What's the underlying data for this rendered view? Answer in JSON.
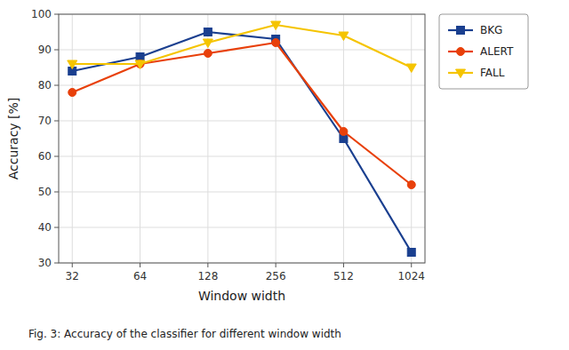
{
  "chart_data": {
    "type": "line",
    "caption": "Fig. 3: Accuracy of the classifier for different window width",
    "x_label": "Window width",
    "y_label": "Accuracy [%]",
    "categories": [
      "32",
      "64",
      "128",
      "256",
      "512",
      "1024"
    ],
    "series": [
      {
        "name": "BKG",
        "color": "#1a3f8f",
        "marker": "square",
        "values": [
          84,
          88,
          95,
          93,
          65,
          33
        ]
      },
      {
        "name": "ALERT",
        "color": "#e8400a",
        "marker": "circle",
        "values": [
          78,
          86,
          89,
          92,
          67,
          52
        ]
      },
      {
        "name": "FALL",
        "color": "#f5c400",
        "marker": "triangle-down",
        "values": [
          86,
          86,
          92,
          97,
          94,
          85
        ]
      }
    ],
    "ylim": [
      30,
      100
    ],
    "yticks": [
      30,
      40,
      50,
      60,
      70,
      80,
      90,
      100
    ],
    "grid": true,
    "legend": "right"
  }
}
